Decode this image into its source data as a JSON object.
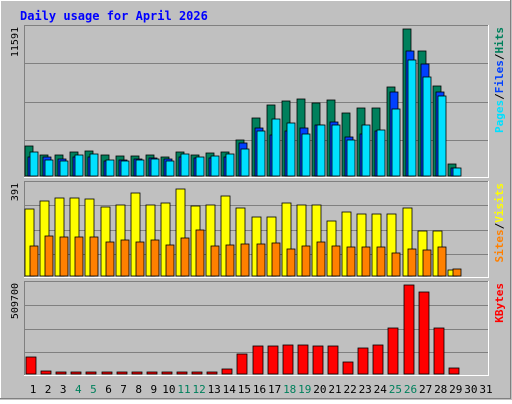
{
  "title": "Daily usage for April 2026",
  "colors": {
    "background": "#c0c0c0",
    "border_light": "#ffffff",
    "border_dark": "#808080",
    "title": "#0000ff",
    "hits": "#00805c",
    "files": "#0040ff",
    "pages": "#00e0ff",
    "visits": "#ffff00",
    "sites": "#ff8000",
    "kbytes": "#ff0000",
    "weekend_day": "#00805c",
    "weekday": "#000000"
  },
  "chart_data": [
    {
      "type": "bar",
      "panel": "hits-files-pages",
      "categories": [
        "1",
        "2",
        "3",
        "4",
        "5",
        "6",
        "7",
        "8",
        "9",
        "10",
        "11",
        "12",
        "13",
        "14",
        "15",
        "16",
        "17",
        "18",
        "19",
        "20",
        "21",
        "22",
        "23",
        "24",
        "25",
        "26",
        "27",
        "28",
        "29",
        "30",
        "31"
      ],
      "ymax_label": "11591",
      "ylim": [
        0,
        11591
      ],
      "legend": [
        "Pages",
        "/",
        "Files",
        "/",
        "Hits"
      ],
      "series": [
        {
          "name": "Hits",
          "values": [
            2300,
            1650,
            1600,
            1850,
            1950,
            1600,
            1550,
            1550,
            1600,
            1500,
            1850,
            1650,
            1800,
            1850,
            2800,
            4500,
            5500,
            5800,
            6000,
            5700,
            5900,
            4900,
            5300,
            5300,
            6900,
            11400,
            9700,
            7000,
            950,
            0,
            0
          ]
        },
        {
          "name": "Files",
          "values": [
            1500,
            1500,
            1300,
            1450,
            1500,
            1200,
            1250,
            1300,
            1400,
            1300,
            1500,
            1400,
            1400,
            1500,
            2600,
            3700,
            3200,
            3500,
            3700,
            4000,
            4200,
            3000,
            3300,
            3500,
            6500,
            9700,
            8700,
            6500,
            600,
            0,
            0
          ]
        },
        {
          "name": "Pages",
          "values": [
            1850,
            1250,
            1150,
            1600,
            1700,
            1250,
            1200,
            1250,
            1300,
            1200,
            1750,
            1450,
            1550,
            1700,
            2100,
            3500,
            4400,
            4100,
            3300,
            4000,
            4000,
            2800,
            4000,
            3600,
            5200,
            9000,
            7700,
            6200,
            600,
            0,
            0
          ]
        }
      ],
      "weekend_days": [
        "4",
        "5",
        "11",
        "12",
        "18",
        "19",
        "25",
        "26"
      ]
    },
    {
      "type": "bar",
      "panel": "visits-sites",
      "categories": [
        "1",
        "2",
        "3",
        "4",
        "5",
        "6",
        "7",
        "8",
        "9",
        "10",
        "11",
        "12",
        "13",
        "14",
        "15",
        "16",
        "17",
        "18",
        "19",
        "20",
        "21",
        "22",
        "23",
        "24",
        "25",
        "26",
        "27",
        "28",
        "29",
        "30",
        "31"
      ],
      "ymax_label": "391",
      "ylim": [
        0,
        391
      ],
      "legend": [
        "Sites",
        "/",
        "Visits"
      ],
      "series": [
        {
          "name": "Visits",
          "values": [
            280,
            315,
            330,
            330,
            325,
            290,
            300,
            350,
            300,
            305,
            365,
            295,
            300,
            335,
            285,
            250,
            250,
            305,
            300,
            300,
            230,
            270,
            260,
            260,
            260,
            285,
            190,
            190,
            25,
            0,
            0
          ]
        },
        {
          "name": "Sites",
          "values": [
            125,
            170,
            165,
            165,
            165,
            145,
            150,
            145,
            150,
            130,
            160,
            195,
            125,
            130,
            135,
            135,
            140,
            115,
            125,
            145,
            125,
            120,
            120,
            120,
            95,
            115,
            110,
            120,
            30,
            0,
            0
          ]
        }
      ]
    },
    {
      "type": "bar",
      "panel": "kbytes",
      "categories": [
        "1",
        "2",
        "3",
        "4",
        "5",
        "6",
        "7",
        "8",
        "9",
        "10",
        "11",
        "12",
        "13",
        "14",
        "15",
        "16",
        "17",
        "18",
        "19",
        "20",
        "21",
        "22",
        "23",
        "24",
        "25",
        "26",
        "27",
        "28",
        "29",
        "30",
        "31"
      ],
      "ymax_label": "509700",
      "ylim": [
        0,
        509700
      ],
      "legend": [
        "KBytes"
      ],
      "series": [
        {
          "name": "KBytes",
          "values": [
            95000,
            15000,
            12000,
            12000,
            12000,
            12000,
            12000,
            12000,
            12000,
            12000,
            12000,
            12000,
            12000,
            30000,
            110000,
            155000,
            155000,
            160000,
            160000,
            155000,
            155000,
            70000,
            145000,
            160000,
            260000,
            498000,
            460000,
            260000,
            35000,
            0,
            0
          ]
        }
      ]
    }
  ]
}
